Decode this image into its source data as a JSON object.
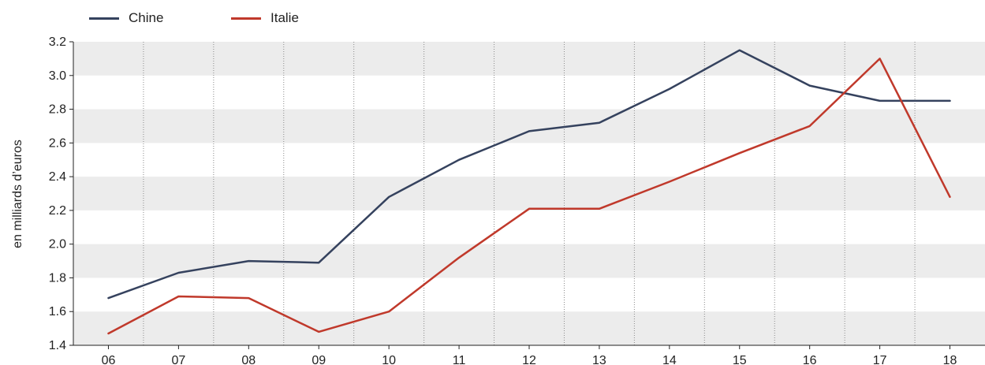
{
  "chart_data": {
    "type": "line",
    "x": [
      "06",
      "07",
      "08",
      "09",
      "10",
      "11",
      "12",
      "13",
      "14",
      "15",
      "16",
      "17",
      "18"
    ],
    "series": [
      {
        "name": "Chine",
        "color": "#35425e",
        "values": [
          1.68,
          1.83,
          1.9,
          1.89,
          2.28,
          2.5,
          2.67,
          2.72,
          2.92,
          3.15,
          2.94,
          2.85,
          2.85
        ]
      },
      {
        "name": "Italie",
        "color": "#c0392b",
        "values": [
          1.47,
          1.69,
          1.68,
          1.48,
          1.6,
          1.92,
          2.21,
          2.21,
          2.37,
          2.54,
          2.7,
          3.1,
          2.28
        ]
      }
    ],
    "ylabel": "en milliards d’euros",
    "ylim": [
      1.4,
      3.2
    ],
    "yticks": [
      "1.4",
      "1.6",
      "1.8",
      "2.0",
      "2.2",
      "2.4",
      "2.6",
      "2.8",
      "3.0",
      "3.2"
    ],
    "legend_position": "top-left",
    "grid": "alternating horizontal bands, dotted vertical separators"
  }
}
